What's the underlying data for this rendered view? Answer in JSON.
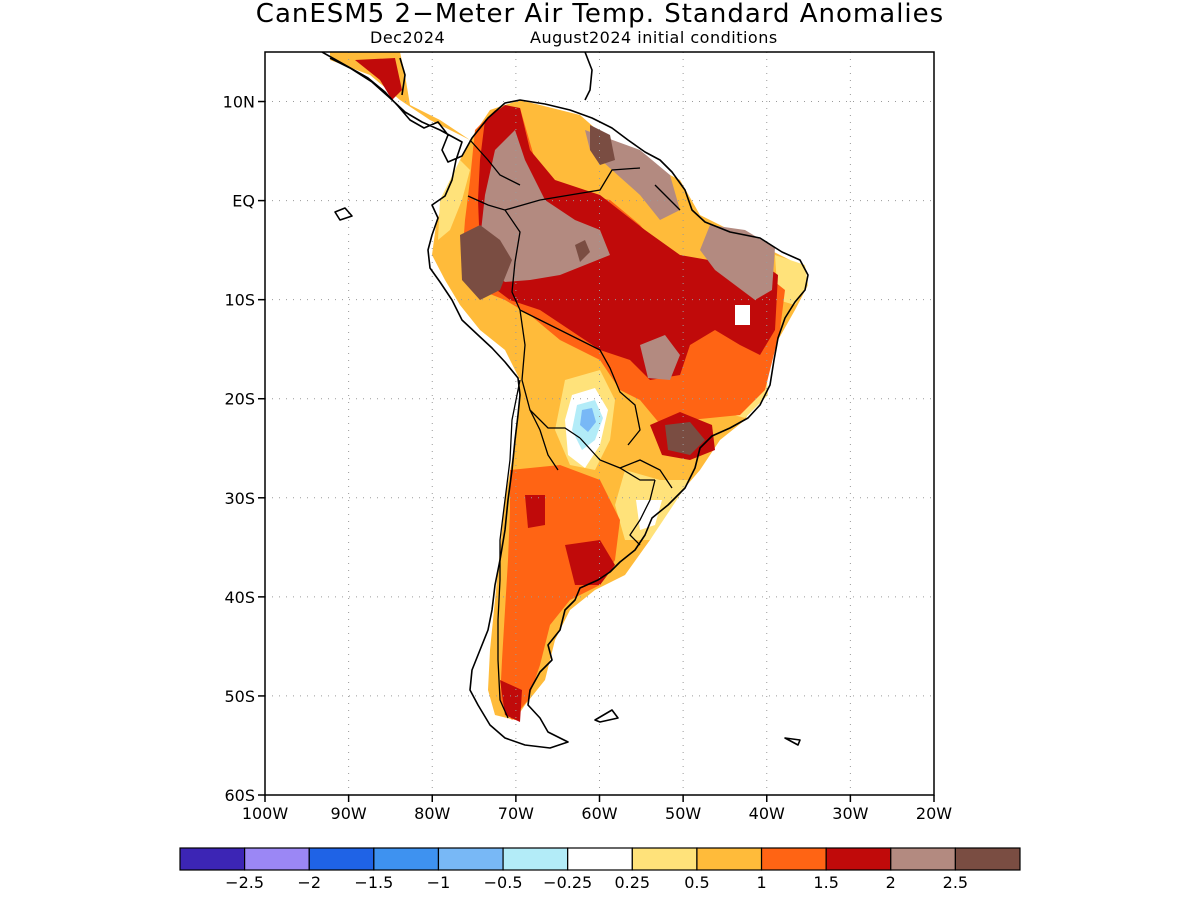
{
  "title": "CanESM5 2−Meter Air Temp. Standard Anomalies",
  "subtitle_left": "Dec2024",
  "subtitle_right": "August2024 initial conditions",
  "map": {
    "lat_range": [
      -60,
      15
    ],
    "lon_range": [
      -100,
      -20
    ],
    "lat_ticks": [
      {
        "value": 10,
        "label": "10N"
      },
      {
        "value": 0,
        "label": "EQ"
      },
      {
        "value": -10,
        "label": "10S"
      },
      {
        "value": -20,
        "label": "20S"
      },
      {
        "value": -30,
        "label": "30S"
      },
      {
        "value": -40,
        "label": "40S"
      },
      {
        "value": -50,
        "label": "50S"
      },
      {
        "value": -60,
        "label": "60S"
      }
    ],
    "lon_ticks": [
      {
        "value": -100,
        "label": "100W"
      },
      {
        "value": -90,
        "label": "90W"
      },
      {
        "value": -80,
        "label": "80W"
      },
      {
        "value": -70,
        "label": "70W"
      },
      {
        "value": -60,
        "label": "60W"
      },
      {
        "value": -50,
        "label": "50W"
      },
      {
        "value": -40,
        "label": "40W"
      },
      {
        "value": -30,
        "label": "30W"
      },
      {
        "value": -20,
        "label": "20W"
      }
    ],
    "grid": "dotted"
  },
  "colorbar": {
    "colors": [
      "#3c25b5",
      "#9b87f5",
      "#1f63e6",
      "#3e92f0",
      "#78b8f6",
      "#b3ecf8",
      "#ffffff",
      "#ffe27a",
      "#ffbb3a",
      "#ff6414",
      "#c00a0a",
      "#b38a80",
      "#7a4d42"
    ],
    "labels": [
      "−2.5",
      "−2",
      "−1.5",
      "−1",
      "−0.5",
      "−0.25",
      "0.25",
      "0.5",
      "1",
      "1.5",
      "2",
      "2.5"
    ]
  }
}
